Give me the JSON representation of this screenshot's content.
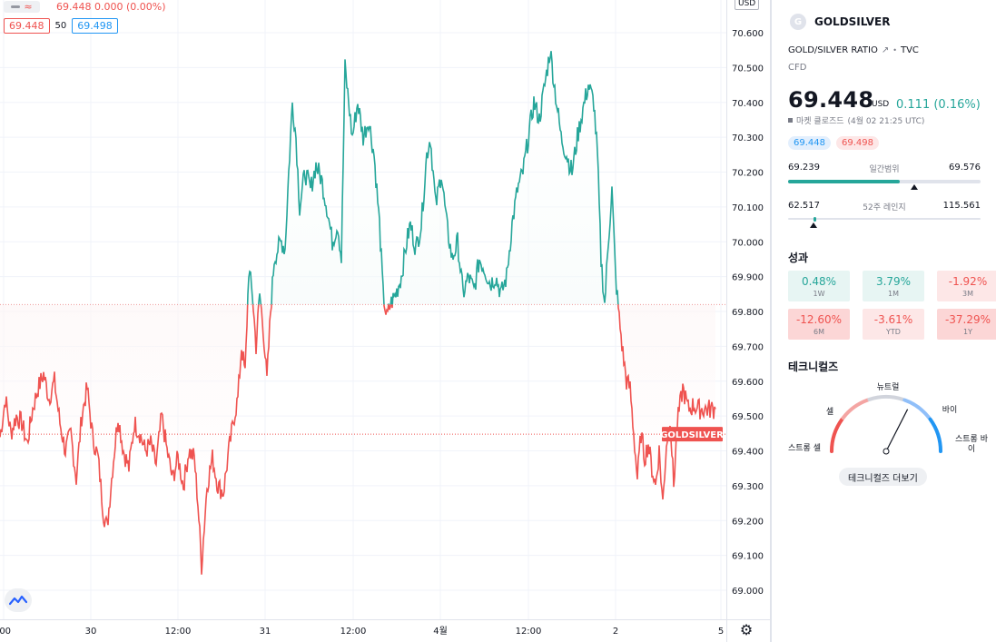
{
  "legend": {
    "price_line": "69.448 0.000 (0.00%)",
    "bid": "69.448",
    "spread": "50",
    "ask": "69.498",
    "currency": "USD",
    "marker_label": "GOLDSILVER",
    "icon_wave": "≈"
  },
  "chart_data": {
    "type": "line",
    "y_axis": {
      "ticks": [
        "70.600",
        "70.500",
        "70.400",
        "70.300",
        "70.200",
        "70.100",
        "70.000",
        "69.900",
        "69.800",
        "69.700",
        "69.600",
        "69.500",
        "69.400",
        "69.300",
        "69.200",
        "69.100",
        "69.000"
      ],
      "range": [
        68.97,
        70.68
      ]
    },
    "x_axis": {
      "ticks": [
        ":00",
        "30",
        "12:00",
        "31",
        "12:00",
        "4월",
        "12:00",
        "2",
        "5"
      ]
    },
    "baseline": 69.82,
    "current_price": 69.448,
    "colors": {
      "above": "#26a69a",
      "below": "#ef5350",
      "above_fill": "#e8f5f3",
      "below_fill": "#fdecec"
    },
    "anchors": [
      [
        0,
        69.44
      ],
      [
        6,
        69.55
      ],
      [
        12,
        69.45
      ],
      [
        18,
        69.5
      ],
      [
        24,
        69.48
      ],
      [
        30,
        69.42
      ],
      [
        36,
        69.52
      ],
      [
        42,
        69.58
      ],
      [
        48,
        69.62
      ],
      [
        54,
        69.55
      ],
      [
        60,
        69.6
      ],
      [
        66,
        69.48
      ],
      [
        72,
        69.4
      ],
      [
        78,
        69.45
      ],
      [
        84,
        69.32
      ],
      [
        90,
        69.5
      ],
      [
        96,
        69.58
      ],
      [
        102,
        69.44
      ],
      [
        108,
        69.38
      ],
      [
        114,
        69.22
      ],
      [
        118,
        69.18
      ],
      [
        124,
        69.35
      ],
      [
        130,
        69.5
      ],
      [
        136,
        69.4
      ],
      [
        142,
        69.35
      ],
      [
        148,
        69.48
      ],
      [
        154,
        69.45
      ],
      [
        160,
        69.4
      ],
      [
        166,
        69.42
      ],
      [
        172,
        69.36
      ],
      [
        178,
        69.5
      ],
      [
        184,
        69.4
      ],
      [
        190,
        69.32
      ],
      [
        196,
        69.38
      ],
      [
        202,
        69.3
      ],
      [
        208,
        69.4
      ],
      [
        214,
        69.38
      ],
      [
        218,
        69.25
      ],
      [
        222,
        69.07
      ],
      [
        228,
        69.3
      ],
      [
        234,
        69.38
      ],
      [
        240,
        69.3
      ],
      [
        246,
        69.28
      ],
      [
        252,
        69.4
      ],
      [
        258,
        69.5
      ],
      [
        262,
        69.55
      ],
      [
        266,
        69.7
      ],
      [
        270,
        69.62
      ],
      [
        274,
        69.92
      ],
      [
        278,
        69.85
      ],
      [
        282,
        69.7
      ],
      [
        286,
        69.85
      ],
      [
        290,
        69.75
      ],
      [
        294,
        69.6
      ],
      [
        298,
        69.8
      ],
      [
        302,
        69.95
      ],
      [
        306,
        69.98
      ],
      [
        310,
        70.0
      ],
      [
        314,
        69.98
      ],
      [
        318,
        70.2
      ],
      [
        322,
        70.4
      ],
      [
        326,
        70.3
      ],
      [
        330,
        70.1
      ],
      [
        336,
        70.2
      ],
      [
        342,
        70.15
      ],
      [
        348,
        70.22
      ],
      [
        354,
        70.18
      ],
      [
        360,
        70.1
      ],
      [
        366,
        70.0
      ],
      [
        372,
        70.05
      ],
      [
        376,
        69.95
      ],
      [
        380,
        70.5
      ],
      [
        384,
        70.4
      ],
      [
        388,
        70.3
      ],
      [
        394,
        70.4
      ],
      [
        400,
        70.3
      ],
      [
        406,
        70.35
      ],
      [
        412,
        70.25
      ],
      [
        418,
        70.05
      ],
      [
        422,
        69.85
      ],
      [
        426,
        69.78
      ],
      [
        430,
        69.82
      ],
      [
        436,
        69.85
      ],
      [
        442,
        69.9
      ],
      [
        448,
        70.0
      ],
      [
        452,
        70.05
      ],
      [
        458,
        69.98
      ],
      [
        464,
        70.05
      ],
      [
        470,
        70.25
      ],
      [
        474,
        70.3
      ],
      [
        480,
        70.1
      ],
      [
        486,
        70.2
      ],
      [
        492,
        70.05
      ],
      [
        498,
        69.95
      ],
      [
        504,
        70.0
      ],
      [
        510,
        69.85
      ],
      [
        516,
        69.9
      ],
      [
        522,
        69.86
      ],
      [
        528,
        69.95
      ],
      [
        534,
        69.92
      ],
      [
        540,
        69.88
      ],
      [
        546,
        69.9
      ],
      [
        552,
        69.85
      ],
      [
        558,
        69.9
      ],
      [
        564,
        70.05
      ],
      [
        570,
        70.15
      ],
      [
        576,
        70.2
      ],
      [
        582,
        70.3
      ],
      [
        588,
        70.4
      ],
      [
        594,
        70.35
      ],
      [
        600,
        70.45
      ],
      [
        606,
        70.55
      ],
      [
        612,
        70.42
      ],
      [
        618,
        70.3
      ],
      [
        624,
        70.25
      ],
      [
        630,
        70.2
      ],
      [
        636,
        70.3
      ],
      [
        642,
        70.38
      ],
      [
        648,
        70.45
      ],
      [
        654,
        70.4
      ],
      [
        658,
        70.25
      ],
      [
        662,
        69.95
      ],
      [
        666,
        69.82
      ],
      [
        670,
        70.0
      ],
      [
        674,
        70.15
      ],
      [
        678,
        69.9
      ],
      [
        682,
        69.78
      ],
      [
        686,
        69.68
      ],
      [
        690,
        69.6
      ],
      [
        694,
        69.58
      ],
      [
        698,
        69.45
      ],
      [
        702,
        69.32
      ],
      [
        706,
        69.45
      ],
      [
        710,
        69.38
      ],
      [
        714,
        69.42
      ],
      [
        718,
        69.35
      ],
      [
        722,
        69.3
      ],
      [
        726,
        69.4
      ],
      [
        730,
        69.25
      ],
      [
        734,
        69.42
      ],
      [
        738,
        69.5
      ],
      [
        742,
        69.3
      ],
      [
        746,
        69.48
      ],
      [
        752,
        69.58
      ],
      [
        758,
        69.52
      ],
      [
        764,
        69.53
      ],
      [
        770,
        69.52
      ],
      [
        776,
        69.52
      ],
      [
        782,
        69.52
      ],
      [
        788,
        69.52
      ]
    ]
  },
  "panel": {
    "symbol": "GOLDSILVER",
    "logo_letter": "G",
    "description": "GOLD/SILVER RATIO",
    "exchange": "TVC",
    "type": "CFD",
    "price": "69.448",
    "currency": "USD",
    "change": "0.111 (0.16%)",
    "market_status": "마켓 클로즈드",
    "timestamp": "(4월 02 21:25 UTC)",
    "bid": "69.448",
    "ask": "69.498",
    "day_range": {
      "low": "69.239",
      "label": "일간범위",
      "high": "69.576",
      "position": 0.58
    },
    "week52_range": {
      "low": "62.517",
      "label": "52주 레인지",
      "high": "115.561",
      "position": 0.13
    },
    "performance_title": "성과",
    "performance": [
      {
        "value": "0.48%",
        "period": "1W",
        "tone": "pos"
      },
      {
        "value": "3.79%",
        "period": "1M",
        "tone": "pos"
      },
      {
        "value": "-1.92%",
        "period": "3M",
        "tone": "neg"
      },
      {
        "value": "-12.60%",
        "period": "6M",
        "tone": "neg-strong"
      },
      {
        "value": "-3.61%",
        "period": "YTD",
        "tone": "neg"
      },
      {
        "value": "-37.29%",
        "period": "1Y",
        "tone": "neg-strong"
      }
    ],
    "technicals_title": "테크니컬즈",
    "gauge": {
      "strong_sell": "스트롱 셀",
      "sell": "셀",
      "neutral": "뉴트럴",
      "buy": "바이",
      "strong_buy": "스트롱 바이",
      "needle_value": 0.3
    },
    "more_button": "테크니컬즈 더보기"
  }
}
